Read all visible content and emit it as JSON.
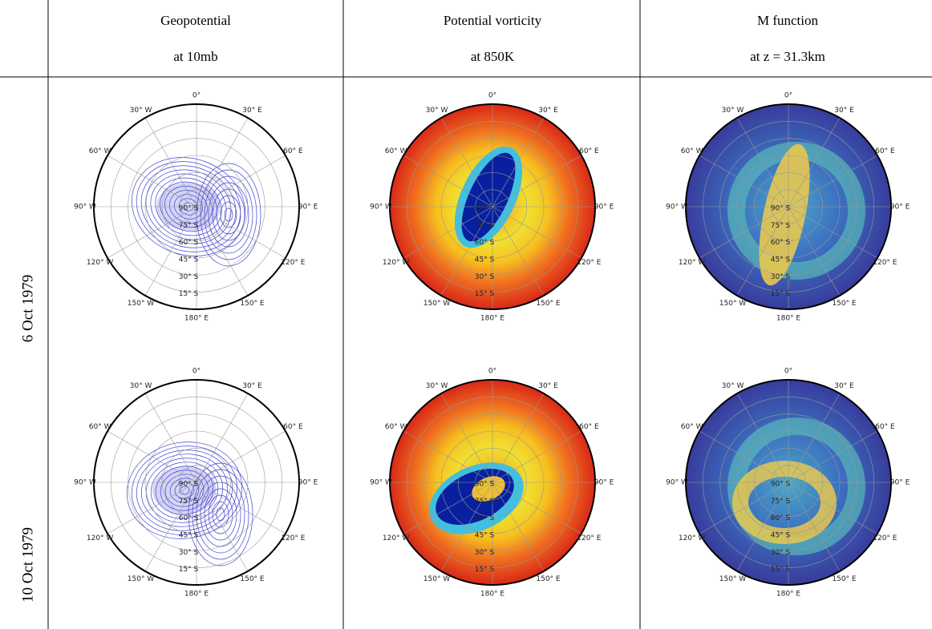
{
  "table": {
    "columns": [
      {
        "title": "Geopotential",
        "subtitle": "at 10mb"
      },
      {
        "title": "Potential vorticity",
        "subtitle": "at 850K"
      },
      {
        "title": "M function",
        "subtitle": "at z = 31.3km"
      }
    ],
    "rows": [
      "6 Oct 1979",
      "10 Oct 1979"
    ]
  },
  "map_labels": {
    "longitudes": [
      "0°",
      "30° E",
      "60° E",
      "90° E",
      "120° E",
      "150° E",
      "180° E",
      "150° W",
      "120° W",
      "90° W",
      "60° W",
      "30° W"
    ],
    "latitudes": [
      "90° S",
      "75° S",
      "60° S",
      "45° S",
      "30° S",
      "15° S"
    ]
  }
}
